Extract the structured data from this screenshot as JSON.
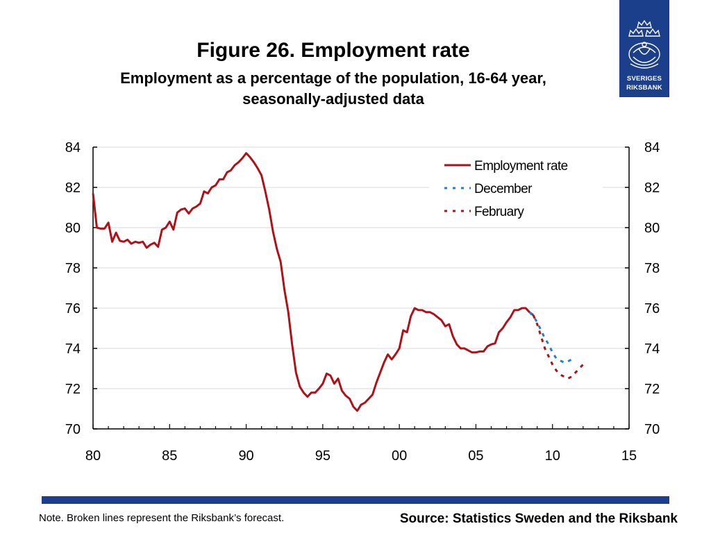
{
  "header": {
    "title": "Figure 26. Employment rate",
    "subtitle_line1": "Employment as a percentage of the population, 16-64 year,",
    "subtitle_line2": "seasonally-adjusted data"
  },
  "logo": {
    "line1": "SVERIGES",
    "line2": "RIKSBANK",
    "icon": "riksbank-crest-icon",
    "color": "#1b3f8b"
  },
  "footer": {
    "note": "Note. Broken lines represent the Riksbank’s forecast.",
    "source": "Source: Statistics Sweden and the Riksbank",
    "bar_color": "#1b3f8b"
  },
  "chart_data": {
    "type": "line",
    "title": "",
    "xlabel": "",
    "ylabel": "",
    "xlim": [
      1980,
      2015
    ],
    "ylim": [
      70,
      84
    ],
    "x_tick_labels": [
      "80",
      "85",
      "90",
      "95",
      "00",
      "05",
      "10",
      "15"
    ],
    "x_tick_values": [
      1980,
      1985,
      1990,
      1995,
      2000,
      2005,
      2010,
      2015
    ],
    "y_tick_values": [
      70,
      72,
      74,
      76,
      78,
      80,
      82,
      84
    ],
    "y_tick_labels": [
      "70",
      "72",
      "74",
      "76",
      "78",
      "80",
      "82",
      "84"
    ],
    "grid": "horizontal",
    "dual_y_axis": true,
    "legend_position": "top-right",
    "series": [
      {
        "name": "Employment rate",
        "style": "solid",
        "color": "#b01016",
        "x": [
          1980.0,
          1980.25,
          1980.5,
          1980.75,
          1981.0,
          1981.25,
          1981.5,
          1981.75,
          1982.0,
          1982.25,
          1982.5,
          1982.75,
          1983.0,
          1983.25,
          1983.5,
          1983.75,
          1984.0,
          1984.25,
          1984.5,
          1984.75,
          1985.0,
          1985.25,
          1985.5,
          1985.75,
          1986.0,
          1986.25,
          1986.5,
          1986.75,
          1987.0,
          1987.25,
          1987.5,
          1987.75,
          1988.0,
          1988.25,
          1988.5,
          1988.75,
          1989.0,
          1989.25,
          1989.5,
          1989.75,
          1990.0,
          1990.25,
          1990.5,
          1990.75,
          1991.0,
          1991.25,
          1991.5,
          1991.75,
          1992.0,
          1992.25,
          1992.5,
          1992.75,
          1993.0,
          1993.25,
          1993.5,
          1993.75,
          1994.0,
          1994.25,
          1994.5,
          1994.75,
          1995.0,
          1995.25,
          1995.5,
          1995.75,
          1996.0,
          1996.25,
          1996.5,
          1996.75,
          1997.0,
          1997.25,
          1997.5,
          1997.75,
          1998.0,
          1998.25,
          1998.5,
          1998.75,
          1999.0,
          1999.25,
          1999.5,
          1999.75,
          2000.0,
          2000.25,
          2000.5,
          2000.75,
          2001.0,
          2001.25,
          2001.5,
          2001.75,
          2002.0,
          2002.25,
          2002.5,
          2002.75,
          2003.0,
          2003.25,
          2003.5,
          2003.75,
          2004.0,
          2004.25,
          2004.5,
          2004.75,
          2005.0,
          2005.25,
          2005.5,
          2005.75,
          2006.0,
          2006.25,
          2006.5,
          2006.75,
          2007.0,
          2007.25,
          2007.5,
          2007.75,
          2008.0,
          2008.25,
          2008.5,
          2008.75
        ],
        "y": [
          81.7,
          80.0,
          79.95,
          79.95,
          80.25,
          79.3,
          79.75,
          79.35,
          79.3,
          79.4,
          79.2,
          79.3,
          79.25,
          79.3,
          79.0,
          79.15,
          79.25,
          79.05,
          79.9,
          80.0,
          80.3,
          79.9,
          80.75,
          80.9,
          80.95,
          80.7,
          80.95,
          81.05,
          81.2,
          81.8,
          81.7,
          82.0,
          82.1,
          82.4,
          82.4,
          82.75,
          82.85,
          83.1,
          83.25,
          83.45,
          83.7,
          83.5,
          83.25,
          82.95,
          82.6,
          81.8,
          80.9,
          79.8,
          78.95,
          78.3,
          76.9,
          75.8,
          74.2,
          72.8,
          72.1,
          71.8,
          71.6,
          71.8,
          71.8,
          72.0,
          72.25,
          72.75,
          72.65,
          72.25,
          72.5,
          71.9,
          71.65,
          71.5,
          71.1,
          70.9,
          71.2,
          71.3,
          71.5,
          71.7,
          72.3,
          72.8,
          73.3,
          73.7,
          73.45,
          73.7,
          74.0,
          74.9,
          74.8,
          75.6,
          76.0,
          75.9,
          75.9,
          75.8,
          75.8,
          75.7,
          75.55,
          75.4,
          75.1,
          75.2,
          74.6,
          74.2,
          74.0,
          74.0,
          73.9,
          73.8,
          73.8,
          73.85,
          73.85,
          74.1,
          74.2,
          74.25,
          74.8,
          75.0,
          75.3,
          75.55,
          75.9,
          75.9,
          76.0,
          76.0,
          75.8,
          75.65
        ]
      },
      {
        "name": "December",
        "style": "dashed",
        "color": "#1f7fd0",
        "x": [
          2008.5,
          2008.75,
          2009.0,
          2009.25,
          2009.5,
          2009.75,
          2010.0,
          2010.25,
          2010.5,
          2010.75,
          2011.0,
          2011.25,
          2011.5
        ],
        "y": [
          75.8,
          75.6,
          75.3,
          74.9,
          74.5,
          74.2,
          73.8,
          73.5,
          73.4,
          73.3,
          73.35,
          73.45,
          73.55
        ]
      },
      {
        "name": "February",
        "style": "dashed",
        "color": "#b01016",
        "x": [
          2008.75,
          2009.0,
          2009.25,
          2009.5,
          2009.75,
          2010.0,
          2010.25,
          2010.5,
          2010.75,
          2011.0,
          2011.25,
          2011.5,
          2011.75,
          2012.0
        ],
        "y": [
          75.65,
          75.2,
          74.6,
          74.0,
          73.6,
          73.2,
          72.9,
          72.7,
          72.6,
          72.5,
          72.6,
          72.8,
          73.0,
          73.2
        ]
      }
    ]
  }
}
